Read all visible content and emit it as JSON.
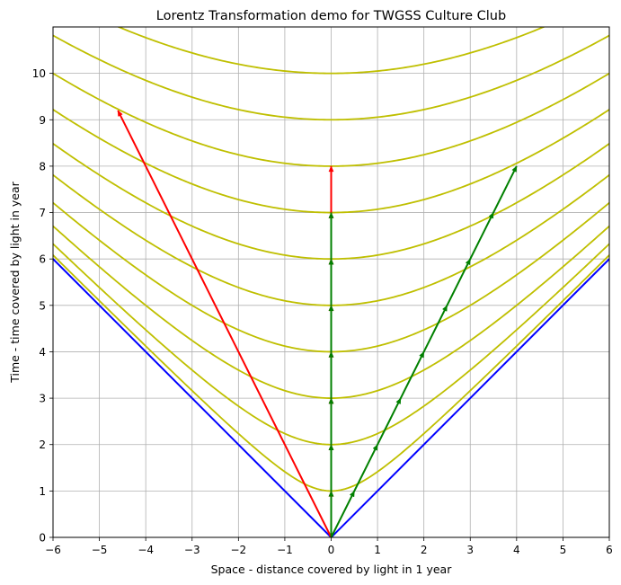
{
  "chart_data": {
    "type": "line",
    "title": "Lorentz Transformation demo for TWGSS Culture Club",
    "xlabel": "Space - distance covered by light in 1 year",
    "ylabel": "Time  - time covered by light in year",
    "xlim": [
      -6,
      6
    ],
    "ylim": [
      0,
      11
    ],
    "xticks": [
      -6,
      -5,
      -4,
      -3,
      -2,
      -1,
      0,
      1,
      2,
      3,
      4,
      5,
      6
    ],
    "yticks": [
      0,
      1,
      2,
      3,
      4,
      5,
      6,
      7,
      8,
      9,
      10
    ],
    "grid": true,
    "colors": {
      "light_cone": "#0000ff",
      "hyperbolas": "#bfbf00",
      "red_worldlines": "#ff0000",
      "green_worldlines": "#008000",
      "grid": "#b0b0b0"
    },
    "light_cone": {
      "points": [
        [
          -6,
          6
        ],
        [
          0,
          0
        ],
        [
          6,
          6
        ]
      ]
    },
    "hyperbolas": {
      "description": "t = sqrt(tau^2 + x^2)",
      "tau_values": [
        1,
        2,
        3,
        4,
        5,
        6,
        7,
        8,
        9,
        10
      ]
    },
    "red_worldlines": [
      {
        "from": [
          0,
          0
        ],
        "to": [
          -4.6,
          9.2
        ]
      },
      {
        "from": [
          0,
          0
        ],
        "to": [
          0,
          8
        ]
      }
    ],
    "red_arrow_heads": [
      [
        0,
        1
      ],
      [
        0,
        2
      ],
      [
        0,
        3
      ],
      [
        0,
        4
      ],
      [
        0,
        5
      ],
      [
        0,
        6
      ],
      [
        0,
        7
      ],
      [
        0,
        8
      ],
      [
        -4.6,
        9.2
      ]
    ],
    "green_worldlines": [
      {
        "from": [
          0,
          0
        ],
        "to": [
          0,
          7
        ]
      },
      {
        "from": [
          0,
          0
        ],
        "to": [
          4,
          8
        ]
      }
    ],
    "green_arrow_heads": [
      [
        0,
        1
      ],
      [
        0,
        2
      ],
      [
        0,
        3
      ],
      [
        0,
        4
      ],
      [
        0,
        5
      ],
      [
        0,
        6
      ],
      [
        0,
        7
      ],
      [
        0.5,
        1
      ],
      [
        1,
        2
      ],
      [
        1.5,
        3
      ],
      [
        2,
        4
      ],
      [
        2.5,
        5
      ],
      [
        3,
        6
      ],
      [
        3.5,
        7
      ],
      [
        4,
        8
      ]
    ]
  }
}
